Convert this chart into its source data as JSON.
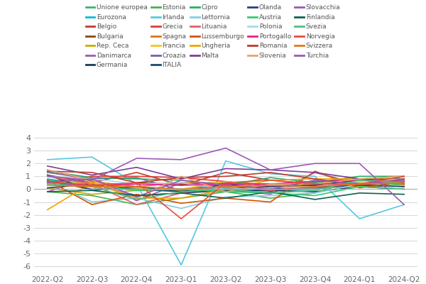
{
  "quarters": [
    "2022-Q2",
    "2022-Q3",
    "2022-Q4",
    "2023-Q1",
    "2023-Q2",
    "2023-Q3",
    "2023-Q4",
    "2024-Q1",
    "2024-Q2"
  ],
  "series": {
    "Unione europea": [
      0.7,
      0.4,
      0.0,
      0.0,
      0.2,
      0.0,
      0.0,
      0.3,
      0.3
    ],
    "Eurozona": [
      0.8,
      0.3,
      -0.1,
      -0.1,
      0.1,
      -0.1,
      0.0,
      0.3,
      0.3
    ],
    "Belgio": [
      1.1,
      0.5,
      1.3,
      0.3,
      1.3,
      0.7,
      0.4,
      0.4,
      0.2
    ],
    "Bulgaria": [
      0.5,
      0.3,
      0.5,
      0.4,
      0.5,
      0.4,
      0.3,
      0.4,
      0.5
    ],
    "Rep. Ceca": [
      0.1,
      -0.4,
      -0.1,
      -0.1,
      -0.2,
      -0.2,
      0.6,
      0.5,
      0.4
    ],
    "Danimarca": [
      -0.2,
      0.9,
      -0.9,
      0.5,
      0.0,
      -0.4,
      1.3,
      0.4,
      0.6
    ],
    "Germania": [
      0.1,
      0.4,
      -0.5,
      -0.3,
      -0.1,
      -0.1,
      -0.2,
      0.2,
      0.0
    ],
    "Estonia": [
      -0.2,
      -0.5,
      -1.2,
      -0.7,
      -0.2,
      -0.7,
      -0.3,
      0.8,
      0.3
    ],
    "Irlanda": [
      2.3,
      2.5,
      0.4,
      -5.9,
      2.2,
      1.2,
      1.0,
      -2.3,
      -1.2
    ],
    "Grecia": [
      0.5,
      1.0,
      1.0,
      0.9,
      0.6,
      0.2,
      0.2,
      0.8,
      0.4
    ],
    "Spagna": [
      1.5,
      0.6,
      0.2,
      0.5,
      0.5,
      0.4,
      0.6,
      0.8,
      0.8
    ],
    "Francia": [
      0.5,
      0.5,
      0.1,
      0.0,
      0.6,
      0.1,
      0.1,
      0.2,
      0.3
    ],
    "Croazia": [
      1.3,
      0.8,
      0.9,
      -0.1,
      0.5,
      0.1,
      0.1,
      0.3,
      1.0
    ],
    "ITALIA": [
      1.1,
      -0.1,
      0.2,
      -0.2,
      0.4,
      0.0,
      0.2,
      0.3,
      0.2
    ],
    "Cipro": [
      1.4,
      0.9,
      0.8,
      0.7,
      0.3,
      0.9,
      0.5,
      1.0,
      1.0
    ],
    "Lettornia": [
      0.6,
      -1.0,
      -0.7,
      -1.5,
      -0.6,
      -0.5,
      -0.3,
      0.4,
      0.5
    ],
    "Lituania": [
      1.0,
      0.4,
      -1.2,
      -0.3,
      0.3,
      -0.1,
      0.3,
      0.4,
      0.6
    ],
    "Lussemburgo": [
      0.7,
      -1.2,
      -0.4,
      -1.1,
      -0.7,
      -1.0,
      1.4,
      0.1,
      0.6
    ],
    "Ungheria": [
      -1.6,
      0.5,
      -0.7,
      -0.7,
      0.0,
      0.7,
      0.8,
      0.8,
      1.0
    ],
    "Malta": [
      1.8,
      1.1,
      1.7,
      0.8,
      1.6,
      1.5,
      1.3,
      0.8,
      0.5
    ],
    "Olanda": [
      0.6,
      0.0,
      0.0,
      -0.2,
      0.0,
      0.2,
      0.3,
      0.7,
      0.8
    ],
    "Austria": [
      0.5,
      0.3,
      -0.1,
      0.0,
      -0.2,
      -0.3,
      -0.5,
      0.2,
      0.0
    ],
    "Polonia": [
      1.0,
      0.8,
      0.4,
      0.5,
      0.0,
      0.1,
      0.2,
      0.6,
      0.8
    ],
    "Portogallo": [
      0.6,
      0.2,
      0.4,
      0.3,
      0.4,
      0.4,
      0.6,
      0.7,
      0.5
    ],
    "Romania": [
      1.4,
      1.3,
      0.5,
      0.9,
      1.0,
      1.3,
      0.8,
      0.3,
      0.8
    ],
    "Slovenia": [
      1.5,
      0.7,
      -0.7,
      1.0,
      -0.2,
      0.4,
      0.4,
      0.8,
      1.0
    ],
    "Slovacchia": [
      0.5,
      0.8,
      -0.6,
      0.7,
      0.3,
      0.0,
      0.7,
      0.4,
      0.7
    ],
    "Finlandia": [
      -0.2,
      -0.1,
      -0.5,
      -0.3,
      -0.7,
      -0.2,
      -0.8,
      -0.3,
      -0.4
    ],
    "Svezia": [
      0.4,
      0.2,
      -0.8,
      -0.2,
      0.0,
      -0.3,
      -0.1,
      0.7,
      0.5
    ],
    "Norvegia": [
      0.6,
      0.3,
      0.5,
      -2.3,
      0.5,
      0.7,
      0.4,
      0.4,
      1.0
    ],
    "Svizzera": [
      0.3,
      0.2,
      0.2,
      0.0,
      0.2,
      0.3,
      0.2,
      0.4,
      0.5
    ],
    "Turchia": [
      1.0,
      0.7,
      2.4,
      2.3,
      3.2,
      1.5,
      2.0,
      2.0,
      -1.2
    ]
  },
  "colors": {
    "Unione europea": "#3cb371",
    "Eurozona": "#00bcd4",
    "Belgio": "#c0392b",
    "Bulgaria": "#8B4513",
    "Rep. Ceca": "#ccaa00",
    "Danimarca": "#9b59b6",
    "Germania": "#1a3a5c",
    "Estonia": "#4caf50",
    "Irlanda": "#56c8e0",
    "Grecia": "#e53935",
    "Spagna": "#d4781a",
    "Francia": "#f5c518",
    "Croazia": "#7b5ea7",
    "ITALIA": "#1a4a70",
    "Cipro": "#27ae60",
    "Lettornia": "#80cee1",
    "Lituania": "#e06070",
    "Lussemburgo": "#d35400",
    "Ungheria": "#f0a500",
    "Malta": "#7d3c98",
    "Olanda": "#2c3e80",
    "Austria": "#2ecc71",
    "Polonia": "#a8d8ea",
    "Portogallo": "#e91e8c",
    "Romania": "#c0392b",
    "Slovenia": "#e8a070",
    "Slovacchia": "#9b59b6",
    "Finlandia": "#0e6251",
    "Svezia": "#52be80",
    "Norvegia": "#e74c3c",
    "Svizzera": "#e07820",
    "Turchia": "#9b59b6"
  },
  "ylim": [
    -6.5,
    5.0
  ],
  "yticks": [
    -6,
    -5,
    -4,
    -3,
    -2,
    -1,
    0,
    1,
    2,
    3,
    4
  ],
  "legend_order": [
    "Unione europea",
    "Eurozona",
    "Belgio",
    "Bulgaria",
    "Rep. Ceca",
    "Danimarca",
    "Germania",
    "Estonia",
    "Irlanda",
    "Grecia",
    "Spagna",
    "Francia",
    "Croazia",
    "ITALIA",
    "Cipro",
    "Lettornia",
    "Lituania",
    "Lussemburgo",
    "Ungheria",
    "Malta",
    "Olanda",
    "Austria",
    "Polonia",
    "Portogallo",
    "Romania",
    "Slovenia",
    "Slovacchia",
    "Finlandia",
    "Svezia",
    "Norvegia",
    "Svizzera",
    "Turchia"
  ],
  "figsize": [
    6.0,
    4.0
  ],
  "dpi": 100
}
